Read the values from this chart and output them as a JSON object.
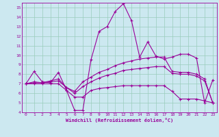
{
  "xlabel": "Windchill (Refroidissement éolien,°C)",
  "bg_color": "#cce8f0",
  "grid_color": "#99ccbb",
  "line_color": "#990099",
  "xlim": [
    -0.5,
    23.5
  ],
  "ylim": [
    4,
    15.5
  ],
  "yticks": [
    4,
    5,
    6,
    7,
    8,
    9,
    10,
    11,
    12,
    13,
    14,
    15
  ],
  "xticks": [
    0,
    1,
    2,
    3,
    4,
    5,
    6,
    7,
    8,
    9,
    10,
    11,
    12,
    13,
    14,
    15,
    16,
    17,
    18,
    19,
    20,
    21,
    22,
    23
  ],
  "series": [
    [
      7.0,
      8.3,
      7.2,
      7.1,
      8.2,
      6.3,
      4.2,
      4.2,
      9.5,
      12.5,
      13.0,
      14.6,
      15.4,
      13.6,
      9.8,
      11.4,
      9.9,
      9.6,
      9.8,
      10.1,
      10.1,
      9.7,
      5.0,
      7.4
    ],
    [
      7.0,
      7.2,
      7.1,
      7.3,
      7.5,
      6.6,
      6.2,
      7.2,
      7.7,
      8.2,
      8.5,
      8.9,
      9.2,
      9.4,
      9.6,
      9.7,
      9.8,
      9.8,
      8.3,
      8.2,
      8.2,
      8.0,
      7.5,
      5.0
    ],
    [
      7.0,
      7.1,
      7.1,
      7.2,
      7.3,
      6.6,
      6.0,
      6.7,
      7.2,
      7.6,
      7.9,
      8.1,
      8.4,
      8.5,
      8.6,
      8.7,
      8.8,
      8.8,
      8.1,
      8.0,
      8.0,
      7.8,
      7.3,
      5.0
    ],
    [
      7.0,
      7.0,
      7.0,
      7.0,
      7.0,
      6.3,
      5.6,
      5.6,
      6.3,
      6.5,
      6.6,
      6.7,
      6.8,
      6.8,
      6.8,
      6.8,
      6.8,
      6.8,
      6.2,
      5.4,
      5.4,
      5.4,
      5.2,
      5.0
    ]
  ]
}
